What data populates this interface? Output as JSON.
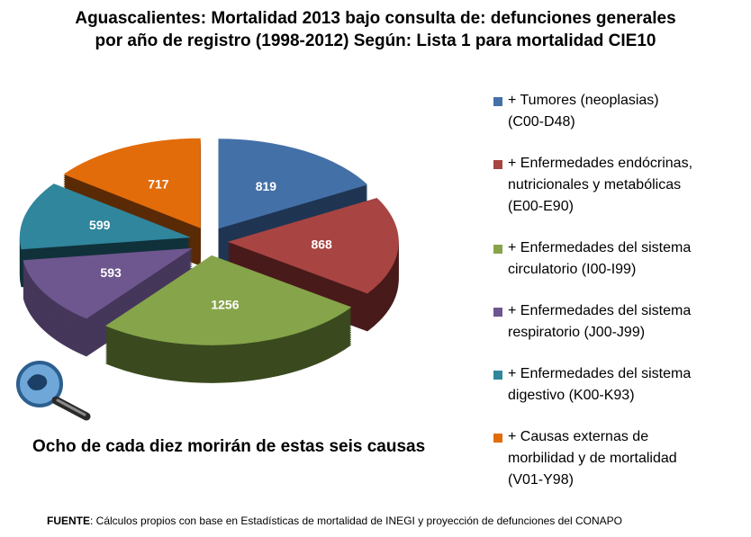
{
  "chart_data": {
    "type": "pie",
    "style": "3d-exploded",
    "title_lines": [
      "Aguascalientes: Mortalidad 2013 bajo consulta de: defunciones generales",
      "por año de registro (1998-2012)  Según: Lista 1 para mortalidad CIE10"
    ],
    "legend_position": "right",
    "slices": [
      {
        "value": 819,
        "color": "#4470a8",
        "dark": "#1f3552",
        "legend": [
          "+ Tumores (neoplasias)",
          "(C00-D48)"
        ]
      },
      {
        "value": 868,
        "color": "#a84442",
        "dark": "#481a1a",
        "legend": [
          "+ Enfermedades endócrinas,",
          "nutricionales y metabólicas",
          "(E00-E90)"
        ]
      },
      {
        "value": 1256,
        "color": "#86a44a",
        "dark": "#3a4a1e",
        "legend": [
          "+ Enfermedades del sistema",
          "circulatorio (I00-I99)"
        ]
      },
      {
        "value": 593,
        "color": "#6e568e",
        "dark": "#45375a",
        "legend": [
          "+ Enfermedades del sistema",
          "respiratorio (J00-J99)"
        ]
      },
      {
        "value": 599,
        "color": "#30869c",
        "dark": "#10313a",
        "legend": [
          "+ Enfermedades del sistema",
          "digestivo (K00-K93)"
        ]
      },
      {
        "value": 717,
        "color": "#e26c0a",
        "dark": "#5a2a06",
        "legend": [
          "+ Causas externas de",
          "morbilidad y de mortalidad",
          "(V01-Y98)"
        ]
      }
    ]
  },
  "subtitle": "Ocho de cada diez morirán de estas seis causas",
  "footer": {
    "label": "FUENTE",
    "text": ": Cálculos propios con base en  Estadísticas de mortalidad  de INEGI y proyección de defunciones del CONAPO"
  },
  "icon": "magnifier-icon"
}
